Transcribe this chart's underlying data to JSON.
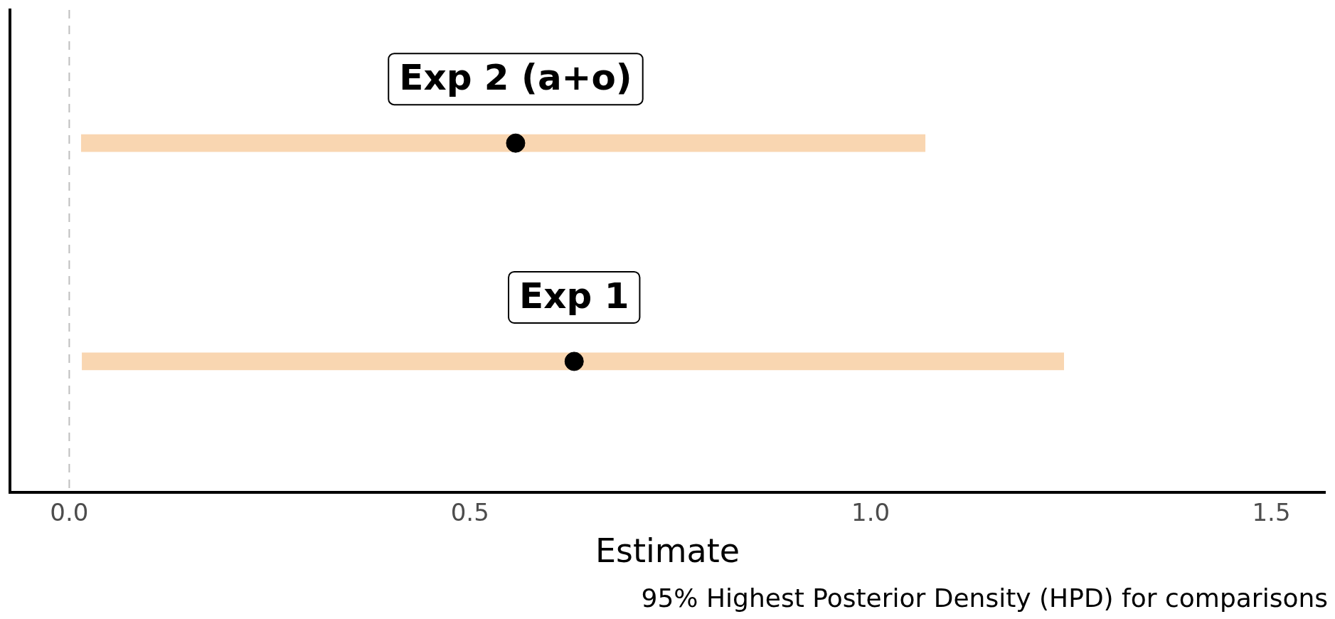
{
  "chart_data": {
    "type": "bar",
    "orientation": "horizontal",
    "categories": [
      "Exp 2 (a+o)",
      "Exp 1"
    ],
    "series": [
      {
        "color": "#f9d6b1",
        "base": [
          0.015,
          0.016
        ],
        "values": [
          1.053,
          1.225
        ]
      },
      {
        "type": "scatter",
        "color": "#000000",
        "values": [
          0.557,
          0.63
        ]
      }
    ],
    "xlim": [
      -0.074,
      1.567
    ],
    "xticks": [
      {
        "value": 0,
        "label": "0.0"
      },
      0.5,
      {
        "value": 1,
        "label": "1.0"
      },
      1.5
    ],
    "xlabel": "Estimate",
    "tick_labels": "x",
    "grid": false,
    "legend": false,
    "marker": "circle",
    "ref_lines": [
      {
        "axis": "x",
        "value": 0,
        "color": "#bebebe",
        "line_style": "dashed"
      }
    ],
    "annotations": [
      "95% Highest Posterior Density (HPD) for comparisons"
    ]
  }
}
